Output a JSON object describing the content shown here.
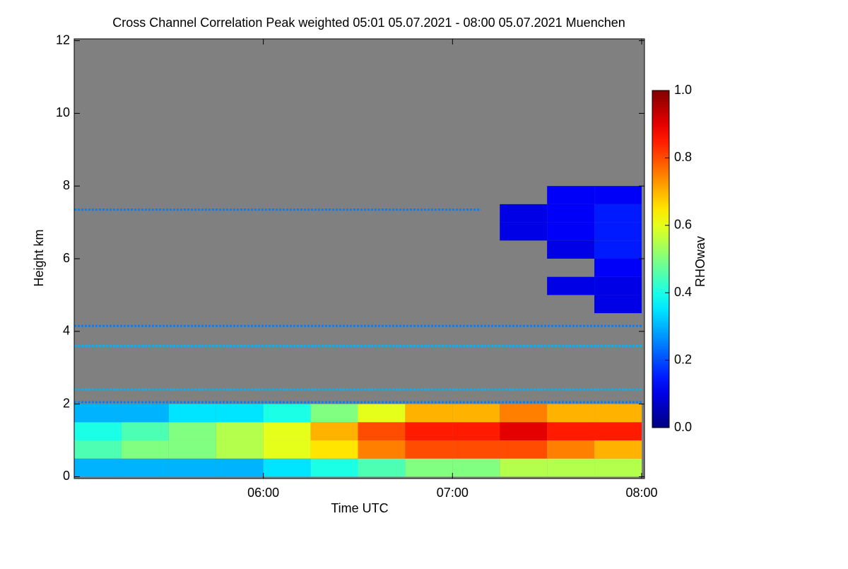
{
  "chart_data": {
    "type": "heatmap",
    "title": "Cross Channel Correlation Peak weighted   05:01 05.07.2021 - 08:00 05.07.2021 Muenchen",
    "xlabel": "Time UTC",
    "ylabel": "Height km",
    "colorbar_label": "RHOwav",
    "colormap": "jet",
    "no_data_color": "#808080",
    "xlim": [
      5.0,
      8.015
    ],
    "xticks": [
      {
        "value": 6,
        "label": "06:00"
      },
      {
        "value": 7,
        "label": "07:00"
      },
      {
        "value": 8,
        "label": "08:00"
      }
    ],
    "ylim": [
      -0.05,
      12.05
    ],
    "yticks": [
      0,
      2,
      4,
      6,
      8,
      10,
      12
    ],
    "clim": [
      0,
      1
    ],
    "cticks": [
      {
        "value": 0,
        "label": "0.0"
      },
      {
        "value": 0.2,
        "label": "0.2"
      },
      {
        "value": 0.4,
        "label": "0.4"
      },
      {
        "value": 0.6,
        "label": "0.6"
      },
      {
        "value": 0.8,
        "label": "0.8"
      },
      {
        "value": 1,
        "label": "1.0"
      }
    ],
    "xbins": [
      5.0,
      5.25,
      5.5,
      5.75,
      6.0,
      6.25,
      6.5,
      6.75,
      7.0,
      7.25,
      7.5,
      7.75,
      8.0
    ],
    "ybins": [
      0,
      0.5,
      1,
      1.5,
      2,
      2.5,
      3,
      3.5,
      4,
      4.5,
      5,
      5.5,
      6,
      6.5,
      7,
      7.5,
      8,
      8.5,
      9,
      9.5,
      10,
      10.5,
      11,
      11.5,
      12
    ],
    "z": [
      [
        0.3,
        0.3,
        0.3,
        0.3,
        0.35,
        0.4,
        0.45,
        0.5,
        0.5,
        0.55,
        0.55,
        0.55
      ],
      [
        0.45,
        0.5,
        0.5,
        0.55,
        0.6,
        0.65,
        0.75,
        0.8,
        0.8,
        0.8,
        0.75,
        0.7
      ],
      [
        0.4,
        0.45,
        0.5,
        0.55,
        0.6,
        0.7,
        0.8,
        0.85,
        0.85,
        0.9,
        0.85,
        0.85
      ],
      [
        0.3,
        0.3,
        0.35,
        0.35,
        0.4,
        0.5,
        0.6,
        0.7,
        0.7,
        0.75,
        0.7,
        0.7
      ],
      [
        null,
        null,
        null,
        null,
        null,
        null,
        null,
        null,
        null,
        null,
        null,
        null
      ],
      [
        null,
        null,
        null,
        null,
        null,
        null,
        null,
        null,
        null,
        null,
        null,
        null
      ],
      [
        null,
        null,
        null,
        null,
        null,
        null,
        null,
        null,
        null,
        null,
        null,
        null
      ],
      [
        null,
        null,
        null,
        null,
        null,
        null,
        null,
        null,
        null,
        null,
        null,
        null
      ],
      [
        null,
        null,
        null,
        null,
        null,
        null,
        null,
        null,
        null,
        null,
        null,
        null
      ],
      [
        null,
        null,
        null,
        null,
        null,
        null,
        null,
        null,
        null,
        null,
        null,
        0.1
      ],
      [
        null,
        null,
        null,
        null,
        null,
        null,
        null,
        null,
        null,
        null,
        0.1,
        0.1
      ],
      [
        null,
        null,
        null,
        null,
        null,
        null,
        null,
        null,
        null,
        null,
        null,
        0.12
      ],
      [
        null,
        null,
        null,
        null,
        null,
        null,
        null,
        null,
        null,
        null,
        0.1,
        0.15
      ],
      [
        null,
        null,
        null,
        null,
        null,
        null,
        null,
        null,
        null,
        0.1,
        0.12,
        0.15
      ],
      [
        null,
        null,
        null,
        null,
        null,
        null,
        null,
        null,
        null,
        0.1,
        0.12,
        0.15
      ],
      [
        null,
        null,
        null,
        null,
        null,
        null,
        null,
        null,
        null,
        null,
        0.12,
        0.12
      ],
      [
        null,
        null,
        null,
        null,
        null,
        null,
        null,
        null,
        null,
        null,
        null,
        null
      ],
      [
        null,
        null,
        null,
        null,
        null,
        null,
        null,
        null,
        null,
        null,
        null,
        null
      ],
      [
        null,
        null,
        null,
        null,
        null,
        null,
        null,
        null,
        null,
        null,
        null,
        null
      ],
      [
        null,
        null,
        null,
        null,
        null,
        null,
        null,
        null,
        null,
        null,
        null,
        null
      ],
      [
        null,
        null,
        null,
        null,
        null,
        null,
        null,
        null,
        null,
        null,
        null,
        null
      ],
      [
        null,
        null,
        null,
        null,
        null,
        null,
        null,
        null,
        null,
        null,
        null,
        null
      ],
      [
        null,
        null,
        null,
        null,
        null,
        null,
        null,
        null,
        null,
        null,
        null,
        null
      ],
      [
        null,
        null,
        null,
        null,
        null,
        null,
        null,
        null,
        null,
        null,
        null,
        null
      ]
    ],
    "layers": [
      {
        "height": 7.35,
        "start": 5.0,
        "end": 7.15,
        "value": 0.25
      },
      {
        "height": 4.15,
        "start": 5.0,
        "end": 8.0,
        "value": 0.25
      },
      {
        "height": 3.6,
        "start": 5.0,
        "end": 8.0,
        "value": 0.3
      },
      {
        "height": 2.4,
        "start": 5.0,
        "end": 8.0,
        "value": 0.3
      },
      {
        "height": 2.05,
        "start": 5.0,
        "end": 8.0,
        "value": 0.25
      }
    ]
  }
}
